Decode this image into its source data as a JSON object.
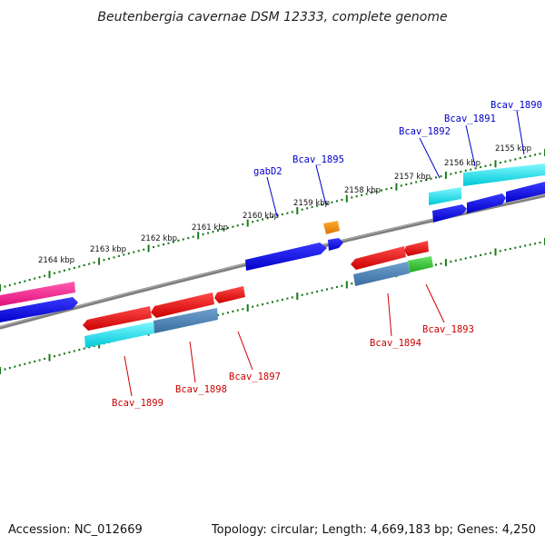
{
  "title": "Beutenbergia cavernae DSM 12333, complete genome",
  "footer": {
    "accession": "Accession: NC_012669",
    "summary": "Topology: circular; Length: 4,669,183 bp; Genes: 4,250"
  },
  "kbp_labels": [
    "2155 kbp",
    "2156 kbp",
    "2157 kbp",
    "2158 kbp",
    "2159 kbp",
    "2160 kbp",
    "2161 kbp",
    "2162 kbp",
    "2163 kbp",
    "2164 kbp"
  ],
  "gene_labels": {
    "forward": [
      "Bcav_1890",
      "Bcav_1891",
      "Bcav_1892",
      "Bcav_1895",
      "gabD2"
    ],
    "reverse": [
      "Bcav_1893",
      "Bcav_1894",
      "Bcav_1897",
      "Bcav_1898",
      "Bcav_1899"
    ]
  },
  "colors": {
    "forward_label": "#0000cc",
    "reverse_label": "#cc0000",
    "backbone": "#7f7f7f",
    "tick": "#1a7a1a",
    "blue": "#0000ee",
    "cyan": "#00e5ee",
    "red": "#ee0000",
    "steel": "#4682b4",
    "green": "#33cc33",
    "orange": "#ee8800",
    "pink": "#ff1493"
  }
}
